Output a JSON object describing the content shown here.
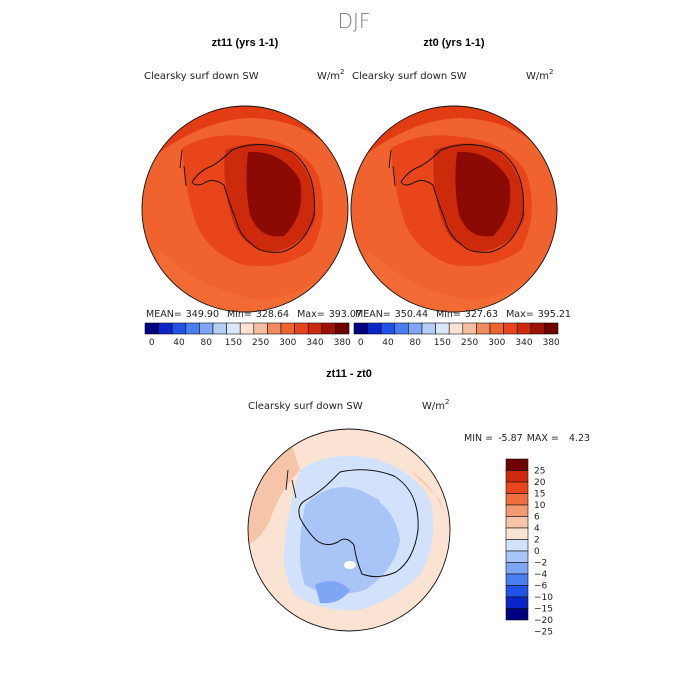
{
  "page_title": "DJF",
  "panels": [
    {
      "header": "zt11 (yrs 1-1)",
      "variable": "Clearsky surf down SW",
      "units": "W/m",
      "units_exp": "2",
      "stats": {
        "mean_label": "MEAN=",
        "mean": "349.90",
        "min_label": "Min=",
        "min": "328.64",
        "max_label": "Max=",
        "max": "393.07"
      }
    },
    {
      "header": "zt0 (yrs 1-1)",
      "variable": "Clearsky surf down SW",
      "units": "W/m",
      "units_exp": "2",
      "stats": {
        "mean_label": "MEAN=",
        "mean": "350.44",
        "min_label": "Min=",
        "min": "327.63",
        "max_label": "Max=",
        "max": "395.21"
      }
    }
  ],
  "diff_panel": {
    "header": "zt11 - zt0",
    "variable": "Clearsky surf down SW",
    "units": "W/m",
    "units_exp": "2",
    "stats": {
      "min_label": "MIN =",
      "min": "-5.87",
      "max_label": "MAX =",
      "max": "4.23"
    }
  },
  "colors": {
    "abs_scale": [
      "#000080",
      "#0a24c8",
      "#1f52e6",
      "#4a7ff0",
      "#7ea6f5",
      "#b4cef8",
      "#dbe8fb",
      "#fbe2d2",
      "#f6bd9e",
      "#f08b5e",
      "#f0622e",
      "#e8461a",
      "#cc2a0a",
      "#9c1006",
      "#6e0000"
    ],
    "diff_scale": [
      "#000080",
      "#0a24c8",
      "#1f52e6",
      "#4a7ff0",
      "#7ea6f5",
      "#a9c4f7",
      "#d3e2fb",
      "#fbe3d3",
      "#f6c4a8",
      "#f29a72",
      "#ee6f3e",
      "#e8461a",
      "#cc2a0a",
      "#6e0000"
    ]
  },
  "chart_data": [
    {
      "type": "heatmap",
      "title": "zt11 (yrs 1-1)",
      "subtitle": "Clearsky surf down SW",
      "units": "W/m^2",
      "mean": 349.9,
      "min": 328.64,
      "max": 393.07,
      "colorbar_ticks": [
        "0",
        "40",
        "80",
        "150",
        "250",
        "300",
        "340",
        "380"
      ]
    },
    {
      "type": "heatmap",
      "title": "zt0 (yrs 1-1)",
      "subtitle": "Clearsky surf down SW",
      "units": "W/m^2",
      "mean": 350.44,
      "min": 327.63,
      "max": 395.21,
      "colorbar_ticks": [
        "0",
        "40",
        "80",
        "150",
        "250",
        "300",
        "340",
        "380"
      ]
    },
    {
      "type": "heatmap",
      "title": "zt11 - zt0",
      "subtitle": "Clearsky surf down SW",
      "units": "W/m^2",
      "min": -5.87,
      "max": 4.23,
      "colorbar_ticks": [
        "25",
        "20",
        "15",
        "10",
        "6",
        "4",
        "2",
        "0",
        "−2",
        "−4",
        "−6",
        "−10",
        "−15",
        "−20",
        "−25"
      ]
    }
  ]
}
